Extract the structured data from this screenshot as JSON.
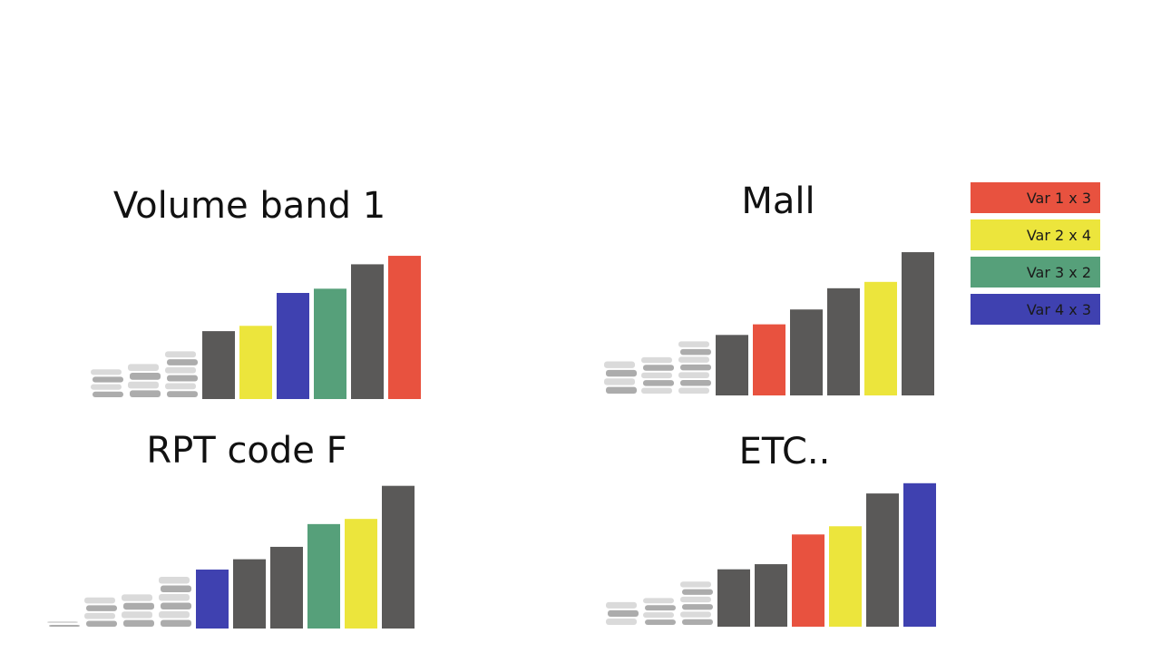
{
  "colors": {
    "dark": "#5a5958",
    "red": "#e8523f",
    "yellow": "#ece53c",
    "green": "#56a07a",
    "blue": "#3f41b0",
    "ghost": "#c4c4c4"
  },
  "legend": [
    {
      "label": "Var 1 x 3",
      "color": "#e8523f"
    },
    {
      "label": "Var 2 x 4",
      "color": "#ece53c"
    },
    {
      "label": "Var 3 x 2",
      "color": "#56a07a"
    },
    {
      "label": "Var 4 x 3",
      "color": "#3f41b0"
    }
  ],
  "chart_data": [
    {
      "type": "bar",
      "title": "Volume band 1",
      "values": [
        28,
        33,
        45,
        64,
        69,
        100,
        104,
        127,
        135
      ],
      "series_colors": [
        "ghost",
        "ghost",
        "ghost",
        "dark",
        "yellow",
        "blue",
        "green",
        "dark",
        "red"
      ]
    },
    {
      "type": "bar",
      "title": "Mall",
      "values": [
        32,
        36,
        51,
        57,
        67,
        81,
        101,
        107,
        135
      ],
      "series_colors": [
        "ghost",
        "ghost",
        "ghost",
        "dark",
        "red",
        "dark",
        "dark",
        "yellow",
        "dark"
      ]
    },
    {
      "type": "bar",
      "title": "RPT code F",
      "values": [
        7,
        30,
        33,
        50,
        57,
        67,
        79,
        101,
        106,
        138
      ],
      "series_colors": [
        "ghost",
        "ghost",
        "ghost",
        "ghost",
        "blue",
        "dark",
        "dark",
        "green",
        "yellow",
        "dark"
      ]
    },
    {
      "type": "bar",
      "title": "ETC..",
      "values": [
        24,
        28,
        44,
        56,
        61,
        90,
        98,
        130,
        140
      ],
      "series_colors": [
        "ghost",
        "ghost",
        "ghost",
        "dark",
        "dark",
        "red",
        "yellow",
        "dark",
        "blue"
      ]
    }
  ]
}
